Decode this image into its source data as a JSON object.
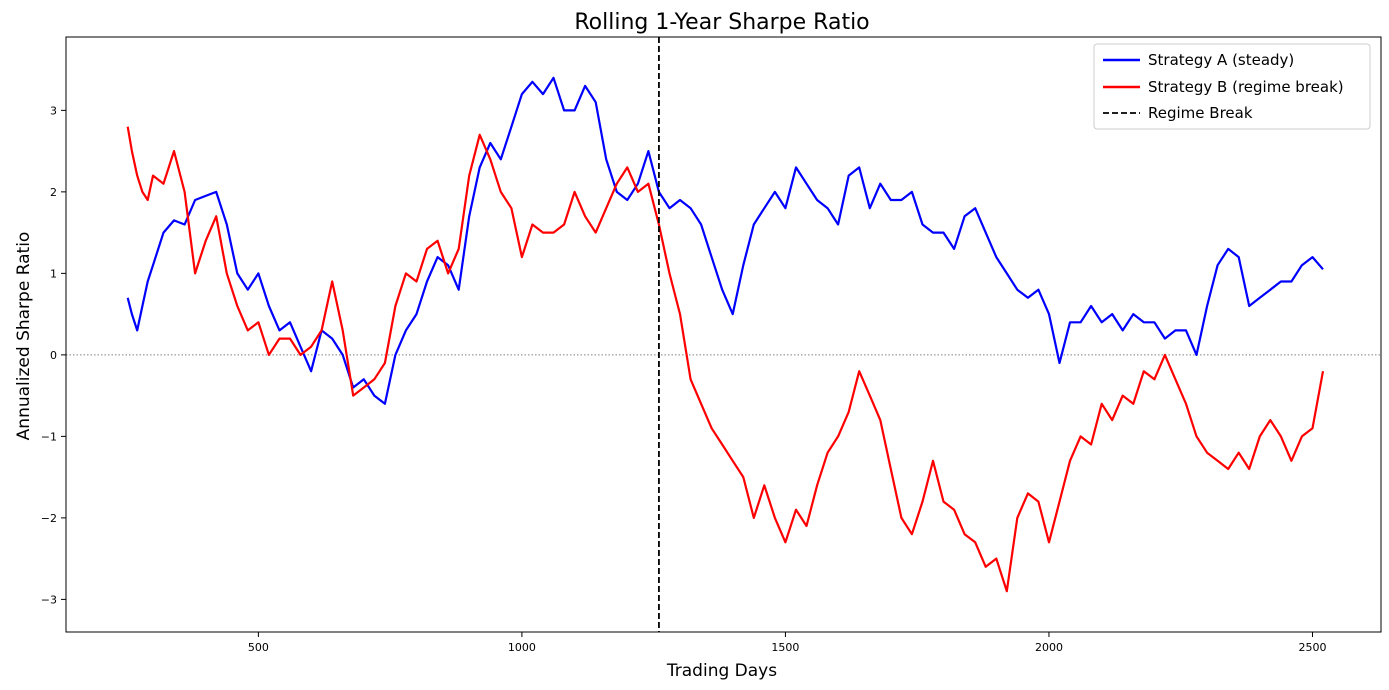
{
  "chart_data": {
    "type": "line",
    "title": "Rolling 1-Year Sharpe Ratio",
    "xlabel": "Trading Days",
    "ylabel": "Annualized Sharpe Ratio",
    "xlim": [
      135,
      2630
    ],
    "ylim": [
      -3.4,
      3.9
    ],
    "xticks": [
      500,
      1000,
      1500,
      2000,
      2500
    ],
    "yticks": [
      -3,
      -2,
      -1,
      0,
      1,
      2,
      3
    ],
    "xtick_labels": [
      "500",
      "1000",
      "1500",
      "2000",
      "2500"
    ],
    "ytick_labels": [
      "−3",
      "−2",
      "−1",
      "0",
      "1",
      "2",
      "3"
    ],
    "grid": false,
    "legend_position": "top-right",
    "zero_line": 0,
    "regime_break_x": 1260,
    "legend": [
      "Strategy A (steady)",
      "Strategy B (regime break)",
      "Regime Break"
    ],
    "colors": {
      "strategy_a": "#0000ff",
      "strategy_b": "#ff0000",
      "regime_break": "#000000",
      "zero_line": "#808080"
    },
    "series": [
      {
        "name": "Strategy A (steady)",
        "color": "#0000ff",
        "x": [
          252,
          260,
          270,
          280,
          290,
          300,
          320,
          340,
          360,
          380,
          400,
          420,
          440,
          460,
          480,
          500,
          520,
          540,
          560,
          580,
          600,
          620,
          640,
          660,
          680,
          700,
          720,
          740,
          760,
          780,
          800,
          820,
          840,
          860,
          880,
          900,
          920,
          940,
          960,
          980,
          1000,
          1020,
          1040,
          1060,
          1080,
          1100,
          1120,
          1140,
          1160,
          1180,
          1200,
          1220,
          1240,
          1260,
          1280,
          1300,
          1320,
          1340,
          1360,
          1380,
          1400,
          1420,
          1440,
          1460,
          1480,
          1500,
          1520,
          1540,
          1560,
          1580,
          1600,
          1620,
          1640,
          1660,
          1680,
          1700,
          1720,
          1740,
          1760,
          1780,
          1800,
          1820,
          1840,
          1860,
          1880,
          1900,
          1920,
          1940,
          1960,
          1980,
          2000,
          2020,
          2040,
          2060,
          2080,
          2100,
          2120,
          2140,
          2160,
          2180,
          2200,
          2220,
          2240,
          2260,
          2280,
          2300,
          2320,
          2340,
          2360,
          2380,
          2400,
          2420,
          2440,
          2460,
          2480,
          2500,
          2520
        ],
        "values": [
          0.7,
          0.5,
          0.3,
          0.6,
          0.9,
          1.1,
          1.5,
          1.65,
          1.6,
          1.9,
          1.95,
          2.0,
          1.6,
          1.0,
          0.8,
          1.0,
          0.6,
          0.3,
          0.4,
          0.1,
          -0.2,
          0.3,
          0.2,
          0.0,
          -0.4,
          -0.3,
          -0.5,
          -0.6,
          0.0,
          0.3,
          0.5,
          0.9,
          1.2,
          1.1,
          0.8,
          1.7,
          2.3,
          2.6,
          2.4,
          2.8,
          3.2,
          3.35,
          3.2,
          3.4,
          3.0,
          3.0,
          3.3,
          3.1,
          2.4,
          2.0,
          1.9,
          2.1,
          2.5,
          2.0,
          1.8,
          1.9,
          1.8,
          1.6,
          1.2,
          0.8,
          0.5,
          1.1,
          1.6,
          1.8,
          2.0,
          1.8,
          2.3,
          2.1,
          1.9,
          1.8,
          1.6,
          2.2,
          2.3,
          1.8,
          2.1,
          1.9,
          1.9,
          2.0,
          1.6,
          1.5,
          1.5,
          1.3,
          1.7,
          1.8,
          1.5,
          1.2,
          1.0,
          0.8,
          0.7,
          0.8,
          0.5,
          -0.1,
          0.4,
          0.4,
          0.6,
          0.4,
          0.5,
          0.3,
          0.5,
          0.4,
          0.4,
          0.2,
          0.3,
          0.3,
          0.0,
          0.6,
          1.1,
          1.3,
          1.2,
          0.6,
          0.7,
          0.8,
          0.9,
          0.9,
          1.1,
          1.2,
          1.05
        ]
      },
      {
        "name": "Strategy B (regime break)",
        "color": "#ff0000",
        "x": [
          252,
          260,
          270,
          280,
          290,
          300,
          320,
          340,
          360,
          380,
          400,
          420,
          440,
          460,
          480,
          500,
          520,
          540,
          560,
          580,
          600,
          620,
          640,
          660,
          680,
          700,
          720,
          740,
          760,
          780,
          800,
          820,
          840,
          860,
          880,
          900,
          920,
          940,
          960,
          980,
          1000,
          1020,
          1040,
          1060,
          1080,
          1100,
          1120,
          1140,
          1160,
          1180,
          1200,
          1220,
          1240,
          1260,
          1280,
          1300,
          1320,
          1340,
          1360,
          1380,
          1400,
          1420,
          1440,
          1460,
          1480,
          1500,
          1520,
          1540,
          1560,
          1580,
          1600,
          1620,
          1640,
          1660,
          1680,
          1700,
          1720,
          1740,
          1760,
          1780,
          1800,
          1820,
          1840,
          1860,
          1880,
          1900,
          1920,
          1940,
          1960,
          1980,
          2000,
          2020,
          2040,
          2060,
          2080,
          2100,
          2120,
          2140,
          2160,
          2180,
          2200,
          2220,
          2240,
          2260,
          2280,
          2300,
          2320,
          2340,
          2360,
          2380,
          2400,
          2420,
          2440,
          2460,
          2480,
          2500,
          2520
        ],
        "values": [
          2.8,
          2.5,
          2.2,
          2.0,
          1.9,
          2.2,
          2.1,
          2.5,
          2.0,
          1.0,
          1.4,
          1.7,
          1.0,
          0.6,
          0.3,
          0.4,
          0.0,
          0.2,
          0.2,
          0.0,
          0.1,
          0.3,
          0.9,
          0.3,
          -0.5,
          -0.4,
          -0.3,
          -0.1,
          0.6,
          1.0,
          0.9,
          1.3,
          1.4,
          1.0,
          1.3,
          2.2,
          2.7,
          2.4,
          2.0,
          1.8,
          1.2,
          1.6,
          1.5,
          1.5,
          1.6,
          2.0,
          1.7,
          1.5,
          1.8,
          2.1,
          2.3,
          2.0,
          2.1,
          1.6,
          1.0,
          0.5,
          -0.3,
          -0.6,
          -0.9,
          -1.1,
          -1.3,
          -1.5,
          -2.0,
          -1.6,
          -2.0,
          -2.3,
          -1.9,
          -2.1,
          -1.6,
          -1.2,
          -1.0,
          -0.7,
          -0.2,
          -0.5,
          -0.8,
          -1.4,
          -2.0,
          -2.2,
          -1.8,
          -1.3,
          -1.8,
          -1.9,
          -2.2,
          -2.3,
          -2.6,
          -2.5,
          -2.9,
          -2.0,
          -1.7,
          -1.8,
          -2.3,
          -1.8,
          -1.3,
          -1.0,
          -1.1,
          -0.6,
          -0.8,
          -0.5,
          -0.6,
          -0.2,
          -0.3,
          0.0,
          -0.3,
          -0.6,
          -1.0,
          -1.2,
          -1.3,
          -1.4,
          -1.2,
          -1.4,
          -1.0,
          -0.8,
          -1.0,
          -1.3,
          -1.0,
          -0.9,
          -0.2
        ]
      }
    ]
  }
}
